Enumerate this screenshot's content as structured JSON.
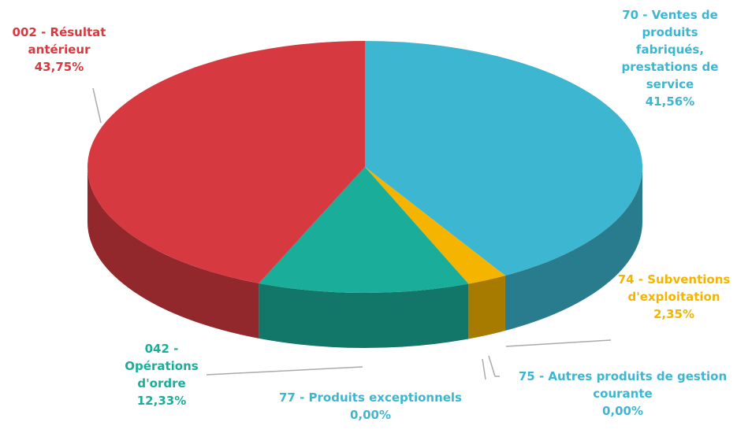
{
  "chart_data": {
    "type": "pie",
    "categories": [
      "70 - Ventes de produits fabriqués, prestations de service",
      "74 - Subventions d'exploitation",
      "75 - Autres produits de gestion courante",
      "77 - Produits exceptionnels",
      "042 - Opérations d'ordre",
      "002 - Résultat antérieur"
    ],
    "values": [
      41.56,
      2.35,
      0,
      0,
      12.33,
      43.75
    ],
    "value_labels": [
      "41,56%",
      "2,35%",
      "0,00%",
      "0,00%",
      "12,33%",
      "43,75%"
    ],
    "colors": [
      "#3db6d1",
      "#f5b400",
      "#3db6d1",
      "#3db6d1",
      "#1aae9a",
      "#d63a40"
    ]
  }
}
